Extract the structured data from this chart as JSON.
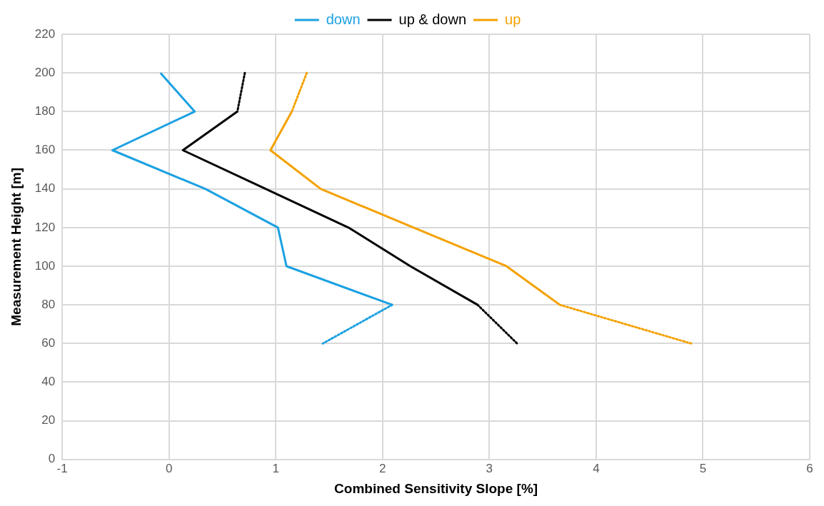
{
  "chart_data": {
    "type": "line",
    "xlabel": "Combined Sensitivity Slope [%]",
    "ylabel": "Measurement Height [m]",
    "xlim": [
      -1,
      6
    ],
    "xticks": [
      -1,
      0,
      1,
      2,
      3,
      4,
      5,
      6
    ],
    "ylim": [
      0,
      220
    ],
    "yticks": [
      0,
      20,
      40,
      60,
      80,
      100,
      120,
      140,
      160,
      180,
      200,
      220
    ],
    "grid": true,
    "legend": "top",
    "marker": "none",
    "series": [
      {
        "name": "down",
        "color": "#1ba1e2",
        "line_style": "solid",
        "x": [
          -0.08,
          0.24,
          -0.53,
          0.34,
          1.02,
          1.1,
          2.09
        ],
        "values": [
          200,
          180,
          160,
          140,
          120,
          100,
          80
        ]
      },
      {
        "name": "up & down",
        "color": "#000000",
        "line_style": "solid",
        "x": [
          0.64,
          0.13,
          1.68,
          2.26,
          2.89
        ],
        "values": [
          180,
          160,
          120,
          100,
          80
        ]
      },
      {
        "name": "up",
        "color": "#f5a100",
        "line_style": "solid",
        "x": [
          1.15,
          0.95,
          1.42,
          2.29,
          3.16,
          3.66
        ],
        "values": [
          180,
          160,
          140,
          120,
          100,
          80
        ]
      },
      {
        "color": "#1ba1e2",
        "line_style": "dotted",
        "x": [
          2.09,
          1.44
        ],
        "values": [
          80,
          60
        ]
      },
      {
        "color": "#000000",
        "line_style": "dotted",
        "x": [
          0.71,
          0.64
        ],
        "values": [
          200,
          180
        ]
      },
      {
        "color": "#000000",
        "line_style": "dotted",
        "x": [
          2.89,
          3.26
        ],
        "values": [
          80,
          60
        ]
      },
      {
        "color": "#f5a100",
        "line_style": "dotted",
        "x": [
          1.29,
          1.15
        ],
        "values": [
          200,
          180
        ]
      },
      {
        "color": "#f5a100",
        "line_style": "dotted",
        "x": [
          3.66,
          4.89
        ],
        "values": [
          80,
          60
        ]
      }
    ]
  }
}
